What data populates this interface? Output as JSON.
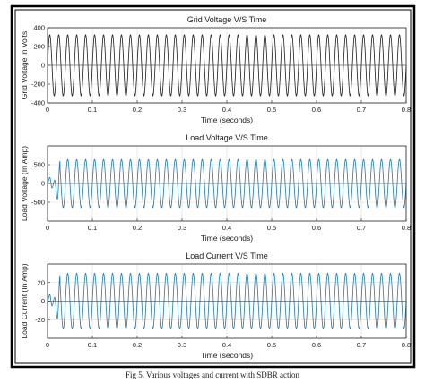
{
  "caption": "Fig 5. Various voltages and current with SDBR action",
  "chart_data": [
    {
      "type": "line",
      "title": "Grid Voltage V/S Time",
      "xlabel": "Time (seconds)",
      "ylabel": "Grid Voltage in Volts",
      "xlim": [
        0,
        0.8
      ],
      "ylim": [
        -400,
        400
      ],
      "xticks": [
        0,
        0.1,
        0.2,
        0.3,
        0.4,
        0.5,
        0.6,
        0.7,
        0.8
      ],
      "xtick_labels": [
        "0",
        "0.1",
        "0.2",
        "0.3",
        "0.4",
        "0.5",
        "0.6",
        "0.7",
        "0.8"
      ],
      "yticks": [
        400,
        200,
        0,
        -200,
        -400
      ],
      "ytick_labels": [
        "400",
        "200",
        "0",
        "-200",
        "-400"
      ],
      "grid": true,
      "color": "#1a1a1a",
      "series": [
        {
          "frequency_hz": 50,
          "amplitude": 325,
          "transient": [],
          "x": [
            0,
            0.8
          ],
          "y_range": [
            -325,
            325
          ]
        }
      ]
    },
    {
      "type": "line",
      "title": "Load Voltage V/S Time",
      "xlabel": "Time (seconds)",
      "ylabel": "Load Voltage (In Amp)",
      "xlim": [
        0,
        0.8
      ],
      "ylim": [
        -1000,
        1000
      ],
      "xticks": [
        0,
        0.1,
        0.2,
        0.3,
        0.4,
        0.5,
        0.6,
        0.7,
        0.8
      ],
      "xtick_labels": [
        "0",
        "0.1",
        "0.2",
        "0.3",
        "0.4",
        "0.5",
        "0.6",
        "0.7",
        "0.8"
      ],
      "yticks": [
        500,
        0,
        -500
      ],
      "ytick_labels": [
        "500",
        "0",
        "-500"
      ],
      "grid": true,
      "color": "#1f77b4",
      "series": [
        {
          "frequency_hz": 50,
          "amplitude": 640,
          "transient": [
            [
              0,
              0
            ],
            [
              0.005,
              160
            ],
            [
              0.01,
              -120
            ],
            [
              0.016,
              90
            ],
            [
              0.022,
              -420
            ],
            [
              0.028,
              600
            ]
          ],
          "x": [
            0,
            0.8
          ],
          "y_range": [
            -640,
            640
          ]
        }
      ]
    },
    {
      "type": "line",
      "title": "Load Current V/S Time",
      "xlabel": "Time (seconds)",
      "ylabel": "Load Current (In Amp)",
      "xlim": [
        0,
        0.8
      ],
      "ylim": [
        -40,
        40
      ],
      "xticks": [
        0,
        0.1,
        0.2,
        0.3,
        0.4,
        0.5,
        0.6,
        0.7,
        0.8
      ],
      "xtick_labels": [
        "0",
        "0.1",
        "0.2",
        "0.3",
        "0.4",
        "0.5",
        "0.6",
        "0.7",
        "0.8"
      ],
      "yticks": [
        20,
        0,
        -20
      ],
      "ytick_labels": [
        "20",
        "0",
        "-20"
      ],
      "grid": true,
      "color": "#1f77b4",
      "series": [
        {
          "frequency_hz": 50,
          "amplitude": 30,
          "transient": [
            [
              0,
              0
            ],
            [
              0.005,
              7
            ],
            [
              0.01,
              -5
            ],
            [
              0.016,
              4
            ],
            [
              0.022,
              -19
            ],
            [
              0.028,
              28
            ]
          ],
          "x": [
            0,
            0.8
          ],
          "y_range": [
            -30,
            30
          ]
        }
      ]
    }
  ]
}
